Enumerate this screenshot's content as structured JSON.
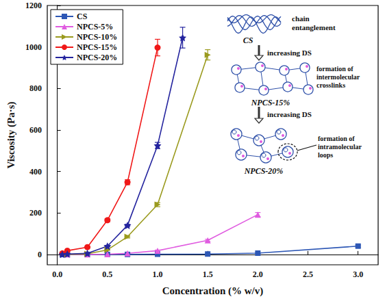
{
  "chart_data": {
    "type": "line",
    "x_label": "Concentration (% w/v)",
    "y_label": "Viscosity (Pa·s)",
    "xlim": [
      -0.1,
      3.2
    ],
    "xticks": [
      {
        "value": 0,
        "label": "0.0"
      },
      {
        "value": 0.5,
        "label": "0.5"
      },
      {
        "value": 1,
        "label": "1.0"
      },
      {
        "value": 1.5,
        "label": "1.5"
      },
      {
        "value": 2,
        "label": "2.0"
      },
      {
        "value": 2.5,
        "label": "2.5"
      },
      {
        "value": 3,
        "label": "3.0"
      }
    ],
    "ylim": [
      -50,
      1200
    ],
    "yticks": [
      0,
      200,
      400,
      600,
      800,
      1000,
      1200
    ],
    "grid": false,
    "legend": "top-left",
    "series": [
      {
        "name": "CS",
        "color": "#2d57b5",
        "marker": "square",
        "x": [
          0.05,
          0.1,
          0.3,
          0.5,
          0.7,
          1.0,
          1.5,
          2.0,
          3.0
        ],
        "values": [
          0,
          0,
          0,
          0,
          0,
          1,
          2,
          6,
          40
        ],
        "errors": [
          0,
          0,
          0,
          0,
          0,
          0,
          1,
          1,
          5
        ]
      },
      {
        "name": "NPCS-5%",
        "color": "#e05ce0",
        "marker": "triangle",
        "x": [
          0.1,
          0.3,
          0.5,
          0.7,
          1.0,
          1.5,
          2.0
        ],
        "values": [
          0,
          0,
          1,
          5,
          18,
          68,
          192
        ],
        "errors": [
          0,
          0,
          0,
          1,
          3,
          5,
          10
        ]
      },
      {
        "name": "NPCS-10%",
        "color": "#9a9a1e",
        "marker": "triangle-right",
        "x": [
          0.1,
          0.3,
          0.5,
          0.7,
          1.0,
          1.5
        ],
        "values": [
          0,
          3,
          22,
          85,
          240,
          962
        ],
        "errors": [
          0,
          1,
          2,
          6,
          10,
          25
        ]
      },
      {
        "name": "NPCS-15%",
        "color": "#f01818",
        "marker": "circle",
        "x": [
          0.05,
          0.1,
          0.3,
          0.5,
          0.7,
          1.0
        ],
        "values": [
          5,
          18,
          35,
          165,
          348,
          997
        ],
        "errors": [
          1,
          2,
          3,
          8,
          12,
          40
        ]
      },
      {
        "name": "NPCS-20%",
        "color": "#24249e",
        "marker": "star",
        "x": [
          0.05,
          0.1,
          0.3,
          0.5,
          0.7,
          1.0,
          1.25
        ],
        "values": [
          0,
          2,
          5,
          40,
          140,
          525,
          1045
        ],
        "errors": [
          0,
          1,
          1,
          3,
          5,
          15,
          50
        ]
      }
    ],
    "annotations": [
      "chain entanglement",
      "CS",
      "increasing DS",
      "NPCS-15%",
      "formation of intermolecular crosslinks",
      "increasing DS",
      "NPCS-20%",
      "formation of intramolecular loops"
    ]
  }
}
